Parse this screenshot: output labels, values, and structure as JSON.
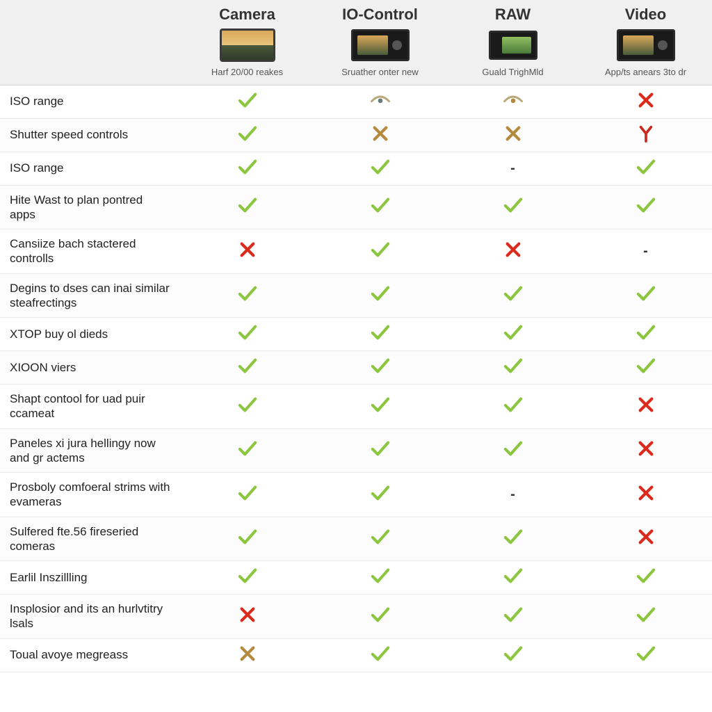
{
  "colors": {
    "check_green": "#8cc63f",
    "cross_red": "#d92a1c",
    "cross_tan": "#b38a3e",
    "y_red": "#c9281e",
    "eye_dark": "#6b7a7a",
    "eye_light": "#b8a878"
  },
  "columns": [
    {
      "title": "Camera",
      "subtitle": "Harf 20/00 reakes",
      "thumb": "camera"
    },
    {
      "title": "IO-Control",
      "subtitle": "Sruather onter new",
      "thumb": "io"
    },
    {
      "title": "RAW",
      "subtitle": "Guald TrighMld",
      "thumb": "raw"
    },
    {
      "title": "Video",
      "subtitle": "App/ts anears 3to dr",
      "thumb": "video"
    }
  ],
  "rows": [
    {
      "label": "ISO range",
      "cells": [
        "check",
        "eye",
        "eye_tan",
        "cross_red"
      ]
    },
    {
      "label": "Shutter speed controls",
      "cells": [
        "check",
        "cross_tan",
        "cross_tan",
        "y_red"
      ]
    },
    {
      "label": "ISO range",
      "cells": [
        "check",
        "check",
        "dash",
        "check"
      ]
    },
    {
      "label": "Hite Wast to plan pontred apps",
      "cells": [
        "check",
        "check",
        "check",
        "check"
      ]
    },
    {
      "label": "Cansiize bach stactered controlls",
      "cells": [
        "cross_red",
        "check",
        "cross_red",
        "dash"
      ]
    },
    {
      "label": "Degins to dses can inai similar steafrectings",
      "cells": [
        "check",
        "check",
        "check",
        "check"
      ]
    },
    {
      "label": "XTOP buy ol dieds",
      "cells": [
        "check",
        "check",
        "check",
        "check"
      ]
    },
    {
      "label": "XIOON viers",
      "cells": [
        "check",
        "check",
        "check",
        "check"
      ]
    },
    {
      "label": "Shapt contool for uad puir ccameat",
      "cells": [
        "check",
        "check",
        "check",
        "cross_red"
      ]
    },
    {
      "label": "Paneles xi jura hellingy now and gr actems",
      "cells": [
        "check",
        "check",
        "check",
        "cross_red"
      ]
    },
    {
      "label": "Prosboly comfoeral strims with evameras",
      "cells": [
        "check",
        "check",
        "dash",
        "cross_red"
      ]
    },
    {
      "label": "Sulfered fte.56 fireseried comeras",
      "cells": [
        "check",
        "check",
        "check",
        "cross_red"
      ]
    },
    {
      "label": "Earlil Inszillling",
      "cells": [
        "check",
        "check",
        "check",
        "check"
      ]
    },
    {
      "label": "Insplosior and its an hurlvtitry lsals",
      "cells": [
        "cross_red",
        "check",
        "check",
        "check"
      ]
    },
    {
      "label": "Toual avoye megreass",
      "cells": [
        "cross_tan",
        "check",
        "check",
        "check"
      ]
    }
  ]
}
